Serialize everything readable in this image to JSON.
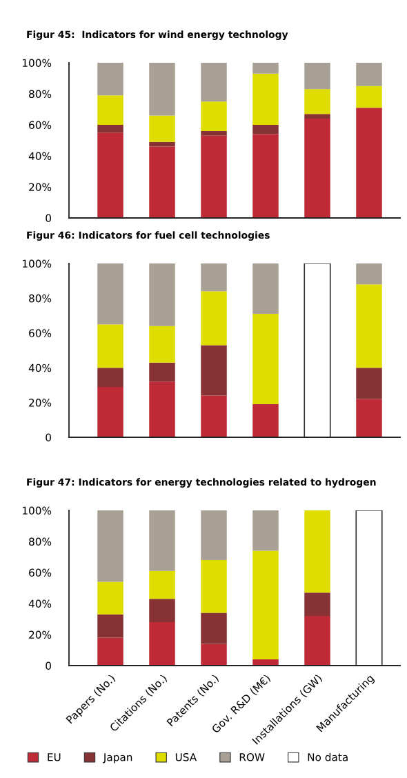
{
  "chart_data": [
    {
      "type": "bar",
      "stacked": true,
      "title": "Figur 45:  Indicators for wind energy technology",
      "categories": [
        null,
        null,
        null,
        null,
        null,
        null
      ],
      "ylim": [
        0,
        100
      ],
      "yticks": [
        {
          "value": 0,
          "label": "0"
        },
        {
          "value": 20,
          "label": "20%"
        },
        {
          "value": 40,
          "label": "40%"
        },
        {
          "value": 60,
          "label": "60%"
        },
        {
          "value": 80,
          "label": "80%"
        },
        {
          "value": 100,
          "label": "100%"
        }
      ],
      "series": [
        {
          "color": "#be2a35",
          "values": [
            55,
            46,
            53,
            54,
            64,
            71
          ]
        },
        {
          "color": "#873235",
          "values": [
            5,
            3,
            3,
            6,
            3,
            null
          ]
        },
        {
          "color": "#dfdc00",
          "values": [
            19,
            17,
            19,
            33,
            16,
            14
          ]
        },
        {
          "color": "#a8a094",
          "values": [
            21,
            34,
            25,
            7,
            17,
            15
          ]
        }
      ]
    },
    {
      "type": "bar",
      "stacked": true,
      "title": "Figur 46: Indicators for fuel cell technologies",
      "categories": [
        null,
        null,
        null,
        null,
        null,
        null
      ],
      "ylim": [
        0,
        100
      ],
      "yticks": [
        {
          "value": 0,
          "label": "0"
        },
        {
          "value": 20,
          "label": "20%"
        },
        {
          "value": 40,
          "label": "40%"
        },
        {
          "value": 60,
          "label": "60%"
        },
        {
          "value": 80,
          "label": "80%"
        },
        {
          "value": 100,
          "label": "100%"
        }
      ],
      "series": [
        {
          "color": "#be2a35",
          "values": [
            29,
            32,
            24,
            19,
            null,
            22
          ]
        },
        {
          "color": "#873235",
          "values": [
            11,
            11,
            29,
            null,
            null,
            18
          ]
        },
        {
          "color": "#dfdc00",
          "values": [
            25,
            21,
            31,
            52,
            null,
            48
          ]
        },
        {
          "color": "#a8a094",
          "values": [
            35,
            36,
            16,
            29,
            null,
            12
          ]
        },
        {
          "color": "#ffffff",
          "values": [
            null,
            null,
            null,
            null,
            100,
            null
          ]
        }
      ]
    },
    {
      "type": "bar",
      "stacked": true,
      "title": "Figur 47: Indicators for energy technologies related to hydrogen",
      "categories": [
        "Papers (No.)",
        "Citations (No.)",
        "Patents (No.)",
        "Gov. R&D (M€)",
        "Installations (GW)",
        "Manufacturing"
      ],
      "ylim": [
        0,
        100
      ],
      "yticks": [
        {
          "value": 0,
          "label": "0"
        },
        {
          "value": 20,
          "label": "20%"
        },
        {
          "value": 40,
          "label": "40%"
        },
        {
          "value": 60,
          "label": "60%"
        },
        {
          "value": 80,
          "label": "80%"
        },
        {
          "value": 100,
          "label": "100%"
        }
      ],
      "legend": "bottom",
      "series": [
        {
          "name": "EU",
          "color": "#be2a35",
          "values": [
            18,
            28,
            14,
            4,
            32,
            null
          ]
        },
        {
          "name": "Japan",
          "color": "#873235",
          "values": [
            15,
            15,
            20,
            null,
            15,
            null
          ]
        },
        {
          "name": "USA",
          "color": "#dfdc00",
          "values": [
            21,
            18,
            34,
            70,
            53,
            null
          ]
        },
        {
          "name": "ROW",
          "color": "#a8a094",
          "values": [
            46,
            39,
            32,
            26,
            null,
            null
          ]
        },
        {
          "name": "No data",
          "color": "#ffffff",
          "values": [
            null,
            null,
            null,
            null,
            null,
            100
          ]
        }
      ]
    }
  ]
}
